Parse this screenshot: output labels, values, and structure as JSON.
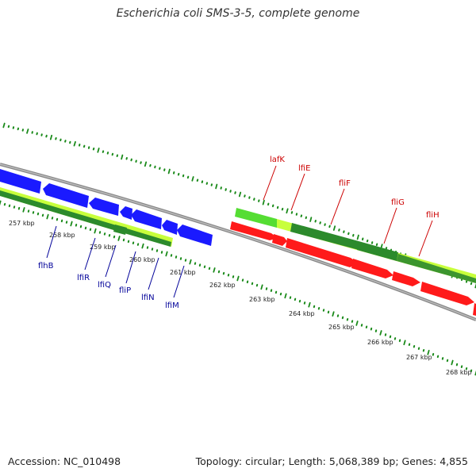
{
  "title": "Escherichia coli SMS-3-5, complete genome",
  "footer": {
    "accession": "Accession: NC_010498",
    "summary": "Topology: circular; Length: 5,068,389 bp; Genes: 4,855"
  },
  "colors": {
    "forward_red": "#ff1a1a",
    "reverse_blue": "#1a1aff",
    "green_light": "#c8ff3c",
    "green_mid": "#55dd33",
    "green_dark": "#2c8a2c",
    "backbone": "#888888",
    "tick": "#1a8a1a",
    "red_label": "#cc0000",
    "blue_label": "#000099"
  },
  "scale_labels": [
    "257 kbp",
    "258 kbp",
    "259 kbp",
    "260 kbp",
    "261 kbp",
    "262 kbp",
    "263 kbp",
    "264 kbp",
    "265 kbp",
    "266 kbp",
    "267 kbp",
    "268 kbp"
  ],
  "forward_gene_labels": [
    "lafK",
    "lfiE",
    "fliF",
    "fliG",
    "fliH"
  ],
  "reverse_gene_labels": [
    "flhB",
    "lfiR",
    "lfiQ",
    "fliP",
    "lfiN",
    "lfiM"
  ]
}
